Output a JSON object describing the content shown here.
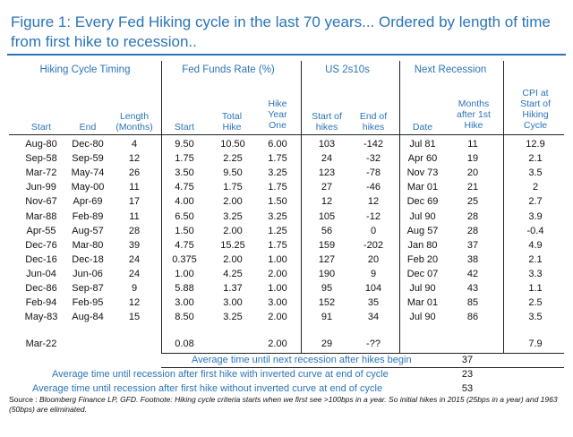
{
  "title": "Figure 1: Every Fed Hiking cycle in the last 70 years... Ordered by length of time from first hike to recession..",
  "groups": {
    "timing": "Hiking Cycle Timing",
    "ffr": "Fed Funds Rate (%)",
    "curve": "US 2s10s",
    "recession": "Next Recession"
  },
  "columns": {
    "start": [
      "Start"
    ],
    "end": [
      "End"
    ],
    "length": [
      "Length",
      "(Months)"
    ],
    "ffr_start": [
      "Start"
    ],
    "total_hike": [
      "Total",
      "Hike"
    ],
    "hike_year_one": [
      "Hike",
      "Year",
      "One"
    ],
    "start_of_hikes": [
      "Start of",
      "hikes"
    ],
    "end_of_hikes": [
      "End of",
      "hikes"
    ],
    "date": [
      "Date"
    ],
    "months_after": [
      "Months",
      "after 1st",
      "Hike"
    ],
    "cpi": [
      "CPI at",
      "Start of",
      "Hiking",
      "Cycle"
    ]
  },
  "rows": [
    [
      "Aug-80",
      "Dec-80",
      "4",
      "9.50",
      "10.50",
      "6.00",
      "103",
      "-142",
      "Jul 81",
      "11",
      "12.9"
    ],
    [
      "Sep-58",
      "Sep-59",
      "12",
      "1.75",
      "2.25",
      "1.75",
      "24",
      "-32",
      "Apr 60",
      "19",
      "2.1"
    ],
    [
      "Mar-72",
      "May-74",
      "26",
      "3.50",
      "9.50",
      "3.25",
      "123",
      "-78",
      "Nov 73",
      "20",
      "3.5"
    ],
    [
      "Jun-99",
      "May-00",
      "11",
      "4.75",
      "1.75",
      "1.75",
      "27",
      "-46",
      "Mar 01",
      "21",
      "2"
    ],
    [
      "Nov-67",
      "Apr-69",
      "17",
      "4.00",
      "2.00",
      "1.50",
      "12",
      "12",
      "Dec 69",
      "25",
      "2.7"
    ],
    [
      "Mar-88",
      "Feb-89",
      "11",
      "6.50",
      "3.25",
      "3.25",
      "105",
      "-12",
      "Jul 90",
      "28",
      "3.9"
    ],
    [
      "Apr-55",
      "Aug-57",
      "28",
      "1.50",
      "2.00",
      "1.25",
      "56",
      "0",
      "Aug 57",
      "28",
      "-0.4"
    ],
    [
      "Dec-76",
      "Mar-80",
      "39",
      "4.75",
      "15.25",
      "1.75",
      "159",
      "-202",
      "Jan 80",
      "37",
      "4.9"
    ],
    [
      "Dec-16",
      "Dec-18",
      "24",
      "0.375",
      "2.00",
      "1.00",
      "127",
      "20",
      "Feb 20",
      "38",
      "2.1"
    ],
    [
      "Jun-04",
      "Jun-06",
      "24",
      "1.00",
      "4.25",
      "2.00",
      "190",
      "9",
      "Dec 07",
      "42",
      "3.3"
    ],
    [
      "Dec-86",
      "Sep-87",
      "9",
      "5.88",
      "1.37",
      "1.00",
      "95",
      "104",
      "Jul 90",
      "43",
      "1.1"
    ],
    [
      "Feb-94",
      "Feb-95",
      "12",
      "3.00",
      "3.00",
      "3.00",
      "152",
      "35",
      "Mar 01",
      "85",
      "2.5"
    ],
    [
      "May-83",
      "Aug-84",
      "15",
      "8.50",
      "3.25",
      "2.00",
      "91",
      "34",
      "Jul 90",
      "86",
      "3.5"
    ]
  ],
  "current": [
    "Mar-22",
    "",
    "",
    "0.08",
    "",
    "2.00",
    "29",
    "-??",
    "",
    "",
    "7.9"
  ],
  "summary": [
    {
      "label": "Average time until next recession after hikes begin",
      "value": "37"
    },
    {
      "label": "Average time until recession after first hike with inverted curve at end of cycle",
      "value": "23"
    },
    {
      "label": "Average time until recession after first hike without inverted curve at end of cycle",
      "value": "53"
    }
  ],
  "source": {
    "prefix": "Source :",
    "text": "Bloomberg Finance LP, GFD. Footnote: Hiking cycle criteria starts when we first see >100bps in a year. So initial hikes in 2015 (25bps in a year) and 1963 (50bps) are eliminated."
  }
}
